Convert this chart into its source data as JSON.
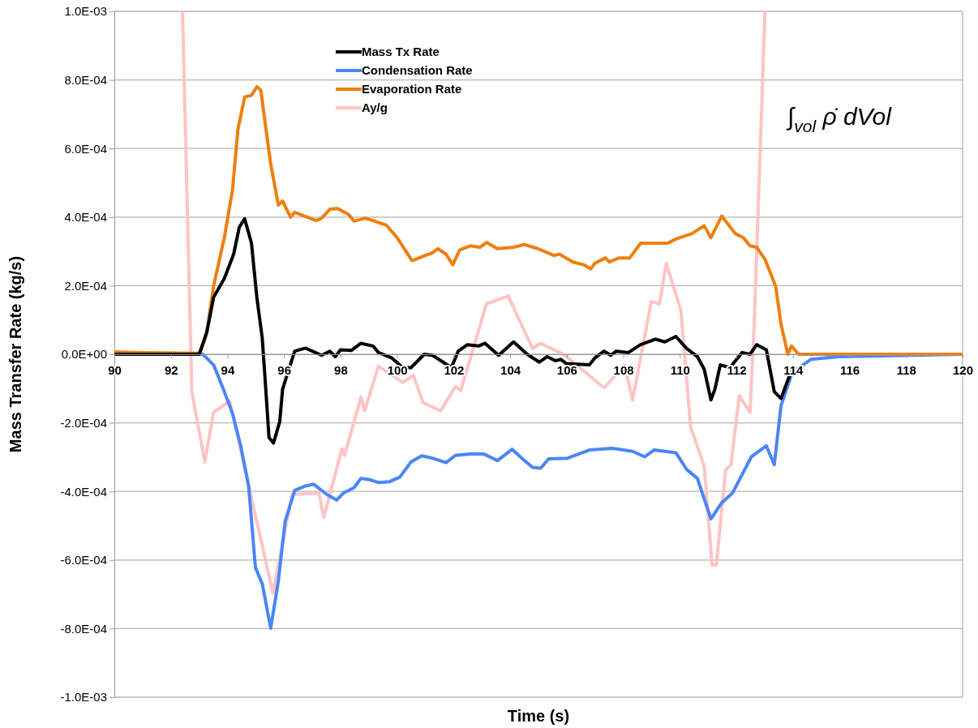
{
  "chart_data": {
    "type": "line",
    "xlabel": "Time (s)",
    "ylabel": "Mass Transfer Rate (kg/s)",
    "xlim": [
      90,
      120
    ],
    "xticks": [
      90,
      92,
      94,
      96,
      98,
      100,
      102,
      104,
      106,
      108,
      110,
      112,
      114,
      116,
      118,
      120
    ],
    "ylim": [
      -0.001,
      0.001
    ],
    "yticks": [
      {
        "value": -0.001,
        "label": "-1.0E-03"
      },
      {
        "value": -0.0008,
        "label": "-8.0E-04"
      },
      {
        "value": -0.0006,
        "label": "-6.0E-04"
      },
      {
        "value": -0.0004,
        "label": "-4.0E-04"
      },
      {
        "value": -0.0002,
        "label": "-2.0E-04"
      },
      {
        "value": 0,
        "label": "0.0E+00"
      },
      {
        "value": 0.0002,
        "label": "2.0E-04"
      },
      {
        "value": 0.0004,
        "label": "4.0E-04"
      },
      {
        "value": 0.0006,
        "label": "6.0E-04"
      },
      {
        "value": 0.0008,
        "label": "8.0E-04"
      },
      {
        "value": 0.001,
        "label": "1.0E-03"
      }
    ],
    "grid": "y",
    "legend": "top",
    "marker": "none",
    "line_style": "solid",
    "annotations": [
      "∫$_{vol}$ ρ̇  dVol"
    ],
    "series": [
      {
        "name": "Mass Tx Rate",
        "color": "#000000",
        "x": [
          90,
          93.0,
          93.27,
          93.51,
          93.89,
          94.22,
          94.42,
          94.61,
          94.85,
          95.04,
          95.23,
          95.33,
          95.47,
          95.63,
          95.85,
          95.95,
          96.19,
          96.38,
          96.76,
          97.33,
          97.62,
          97.81,
          98.0,
          98.38,
          98.72,
          99.15,
          99.34,
          99.82,
          100.2,
          100.49,
          100.96,
          101.25,
          101.63,
          101.92,
          102.16,
          102.49,
          102.88,
          103.11,
          103.59,
          104.12,
          104.6,
          105.03,
          105.31,
          105.6,
          105.79,
          105.98,
          106.8,
          106.99,
          107.32,
          107.56,
          107.75,
          108.18,
          108.61,
          109.14,
          109.47,
          109.86,
          110.24,
          110.62,
          110.86,
          111.1,
          111.24,
          111.43,
          111.77,
          112.2,
          112.48,
          112.72,
          113.06,
          113.34,
          113.58,
          113.77,
          113.97
        ],
        "values": [
          0,
          0,
          6.4e-05,
          0.000166,
          0.000221,
          0.000292,
          0.000371,
          0.000395,
          0.000324,
          0.000166,
          4.8e-05,
          -7e-05,
          -0.000243,
          -0.000259,
          -0.000196,
          -0.000102,
          -3.9e-05,
          9e-06,
          1.8e-05,
          -3e-06,
          9e-06,
          -7e-06,
          1.3e-05,
          1.1e-05,
          3.2e-05,
          2.4e-05,
          5e-06,
          -1.1e-05,
          -3.9e-05,
          -3.9e-05,
          0,
          -3e-06,
          -2.3e-05,
          -3.9e-05,
          9e-06,
          2.8e-05,
          2.4e-05,
          3.2e-05,
          -3e-06,
          3.6e-05,
          0,
          -2.3e-05,
          -7e-06,
          -1.9e-05,
          -1.5e-05,
          -2.7e-05,
          -3.1e-05,
          -1.1e-05,
          9e-06,
          -3e-06,
          9e-06,
          5e-06,
          2.8e-05,
          4.4e-05,
          3.6e-05,
          5.2e-05,
          1.7e-05,
          -7e-06,
          -4.3e-05,
          -0.000133,
          -0.000102,
          -3.1e-05,
          -3.9e-05,
          5e-06,
          0,
          2.8e-05,
          1.3e-05,
          -0.000109,
          -0.000129,
          -8.6e-05,
          -4.3e-05
        ]
      },
      {
        "name": "Condensation Rate",
        "color": "#4a86f7",
        "x": [
          90,
          93.13,
          93.51,
          93.89,
          94.18,
          94.47,
          94.75,
          94.99,
          95.23,
          95.53,
          95.8,
          96.04,
          96.38,
          96.76,
          97.05,
          97.52,
          97.86,
          98.1,
          98.48,
          98.72,
          99.05,
          99.34,
          99.72,
          100.1,
          100.49,
          100.87,
          101.25,
          101.73,
          102.06,
          102.59,
          103.07,
          103.55,
          104.07,
          104.41,
          104.79,
          105.08,
          105.36,
          106.03,
          106.8,
          107.61,
          108.33,
          108.76,
          109.09,
          109.86,
          110.24,
          110.62,
          111.1,
          111.48,
          111.86,
          112.53,
          113.06,
          113.34,
          113.58,
          113.97,
          114.63,
          115.59,
          117.5,
          120
        ],
        "values": [
          0,
          0,
          -3.1e-05,
          -0.000109,
          -0.000173,
          -0.000267,
          -0.000385,
          -0.000622,
          -0.000669,
          -0.000799,
          -0.000661,
          -0.000488,
          -0.000397,
          -0.000384,
          -0.000379,
          -0.000409,
          -0.000425,
          -0.000405,
          -0.000389,
          -0.000362,
          -0.000366,
          -0.000374,
          -0.000372,
          -0.000358,
          -0.000314,
          -0.000296,
          -0.000303,
          -0.000316,
          -0.000295,
          -0.000291,
          -0.000291,
          -0.00031,
          -0.000277,
          -0.000303,
          -0.00033,
          -0.000332,
          -0.000305,
          -0.000303,
          -0.000279,
          -0.000274,
          -0.000283,
          -0.000299,
          -0.000279,
          -0.000287,
          -0.000336,
          -0.000362,
          -0.00048,
          -0.000433,
          -0.000405,
          -0.000299,
          -0.000267,
          -0.000322,
          -0.000149,
          -5.4e-05,
          -1.5e-05,
          -7e-06,
          -4e-06,
          0
        ]
      },
      {
        "name": "Evaporation Rate",
        "color": "#ee7f0d",
        "x": [
          90,
          91,
          93.03,
          93.27,
          93.51,
          93.89,
          94.18,
          94.37,
          94.61,
          94.85,
          95.04,
          95.18,
          95.52,
          95.8,
          95.95,
          96.23,
          96.38,
          97.14,
          97.33,
          97.62,
          97.9,
          98.29,
          98.48,
          98.86,
          99.15,
          99.63,
          100.0,
          100.53,
          100.9,
          101.25,
          101.44,
          101.73,
          101.97,
          102.21,
          102.59,
          102.93,
          103.16,
          103.55,
          104.12,
          104.5,
          104.98,
          105.55,
          105.74,
          106.22,
          106.61,
          106.85,
          106.99,
          107.37,
          107.51,
          107.85,
          108.23,
          108.61,
          109.09,
          109.57,
          109.86,
          110.43,
          110.86,
          111.1,
          111.48,
          111.96,
          112.25,
          112.48,
          112.72,
          113.01,
          113.39,
          113.58,
          113.82,
          113.95,
          114.2,
          120
        ],
        "values": [
          7e-06,
          5e-06,
          3e-06,
          6.4e-05,
          0.000199,
          0.00034,
          0.00048,
          0.000655,
          0.00075,
          0.000755,
          0.00078,
          0.00077,
          0.00056,
          0.000435,
          0.000447,
          0.0004,
          0.000414,
          0.00039,
          0.000397,
          0.000423,
          0.000425,
          0.000407,
          0.000388,
          0.000397,
          0.00039,
          0.000376,
          0.00034,
          0.000273,
          0.000285,
          0.000296,
          0.000308,
          0.000292,
          0.000261,
          0.000304,
          0.000316,
          0.000312,
          0.000326,
          0.000308,
          0.000312,
          0.00032,
          0.000308,
          0.000288,
          0.000292,
          0.000269,
          0.000261,
          0.000249,
          0.000265,
          0.000281,
          0.000269,
          0.000281,
          0.000281,
          0.000324,
          0.000324,
          0.000324,
          0.000336,
          0.000352,
          0.000375,
          0.00034,
          0.000403,
          0.000352,
          0.00034,
          0.000316,
          0.000312,
          0.000277,
          0.000198,
          8.7e-05,
          0,
          2.4e-05,
          0,
          0
        ]
      },
      {
        "name": "Ay/g",
        "color": "#ffc4c4",
        "x": [
          92.41,
          92.74,
          93.2,
          93.51,
          94.08,
          95.61,
          96.28,
          97.24,
          97.41,
          98.05,
          98.14,
          98.72,
          98.85,
          99.34,
          100.2,
          100.58,
          100.92,
          101.54,
          102.06,
          102.25,
          103.16,
          103.93,
          104.79,
          105.08,
          105.94,
          107.32,
          108.04,
          108.33,
          108.99,
          109.28,
          109.52,
          110.04,
          110.38,
          110.86,
          111.14,
          111.29,
          111.62,
          111.81,
          112.1,
          112.48,
          112.63,
          113.01
        ],
        "values": [
          0.001,
          -0.000109,
          -0.000314,
          -0.000169,
          -0.000137,
          -0.000697,
          -0.000409,
          -0.000405,
          -0.000476,
          -0.000275,
          -0.000295,
          -0.000125,
          -0.000165,
          -3.5e-05,
          -8.2e-05,
          -6.2e-05,
          -0.000141,
          -0.000165,
          -9.4e-05,
          -0.000106,
          0.000147,
          0.00017,
          1.7e-05,
          3.2e-05,
          -3e-06,
          -9.8e-05,
          -3.1e-05,
          -0.000133,
          0.000154,
          0.000147,
          0.000265,
          0.000127,
          -0.000212,
          -0.000326,
          -0.000614,
          -0.000614,
          -0.000338,
          -0.000322,
          -0.000121,
          -0.000169,
          8.7e-05,
          0.001
        ]
      }
    ]
  }
}
